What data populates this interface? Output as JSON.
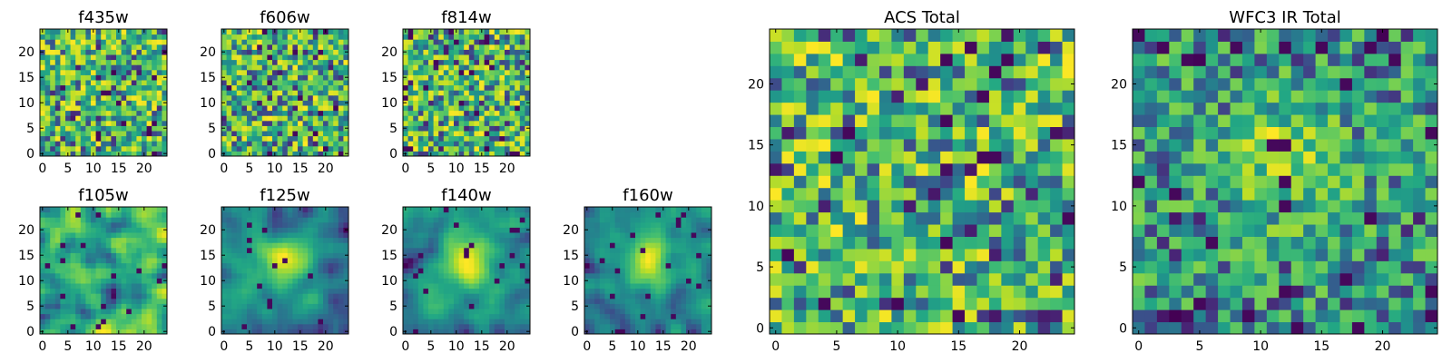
{
  "chart_data": [
    {
      "type": "heatmap",
      "title": "f435w",
      "size": 25,
      "xticks": [
        0,
        5,
        10,
        15,
        20
      ],
      "yticks": [
        0,
        5,
        10,
        15,
        20
      ],
      "pattern": "noise",
      "seed": 11,
      "colormap": "viridis"
    },
    {
      "type": "heatmap",
      "title": "f606w",
      "size": 25,
      "xticks": [
        0,
        5,
        10,
        15,
        20
      ],
      "yticks": [
        0,
        5,
        10,
        15,
        20
      ],
      "pattern": "noise",
      "seed": 23,
      "colormap": "viridis"
    },
    {
      "type": "heatmap",
      "title": "f814w",
      "size": 25,
      "xticks": [
        0,
        5,
        10,
        15,
        20
      ],
      "yticks": [
        0,
        5,
        10,
        15,
        20
      ],
      "pattern": "noise",
      "seed": 37,
      "colormap": "viridis"
    },
    {
      "type": "heatmap",
      "title": "f105w",
      "size": 25,
      "xticks": [
        0,
        5,
        10,
        15,
        20
      ],
      "yticks": [
        0,
        5,
        10,
        15,
        20
      ],
      "pattern": "smooth",
      "seed": 41,
      "colormap": "viridis"
    },
    {
      "type": "heatmap",
      "title": "f125w",
      "size": 25,
      "xticks": [
        0,
        5,
        10,
        15,
        20
      ],
      "yticks": [
        0,
        5,
        10,
        15,
        20
      ],
      "pattern": "smooth-source",
      "seed": 53,
      "colormap": "viridis"
    },
    {
      "type": "heatmap",
      "title": "f140w",
      "size": 25,
      "xticks": [
        0,
        5,
        10,
        15,
        20
      ],
      "yticks": [
        0,
        5,
        10,
        15,
        20
      ],
      "pattern": "smooth-source",
      "seed": 67,
      "colormap": "viridis"
    },
    {
      "type": "heatmap",
      "title": "f160w",
      "size": 25,
      "xticks": [
        0,
        5,
        10,
        15,
        20
      ],
      "yticks": [
        0,
        5,
        10,
        15,
        20
      ],
      "pattern": "smooth-source",
      "seed": 79,
      "colormap": "viridis"
    },
    {
      "type": "heatmap",
      "title": "ACS Total",
      "size": 25,
      "xticks": [
        0,
        5,
        10,
        15,
        20
      ],
      "yticks": [
        0,
        5,
        10,
        15,
        20
      ],
      "pattern": "coarse",
      "seed": 83,
      "colormap": "viridis"
    },
    {
      "type": "heatmap",
      "title": "WFC3 IR Total",
      "size": 25,
      "xticks": [
        0,
        5,
        10,
        15,
        20
      ],
      "yticks": [
        0,
        5,
        10,
        15,
        20
      ],
      "pattern": "coarse-source",
      "seed": 97,
      "colormap": "viridis"
    }
  ]
}
